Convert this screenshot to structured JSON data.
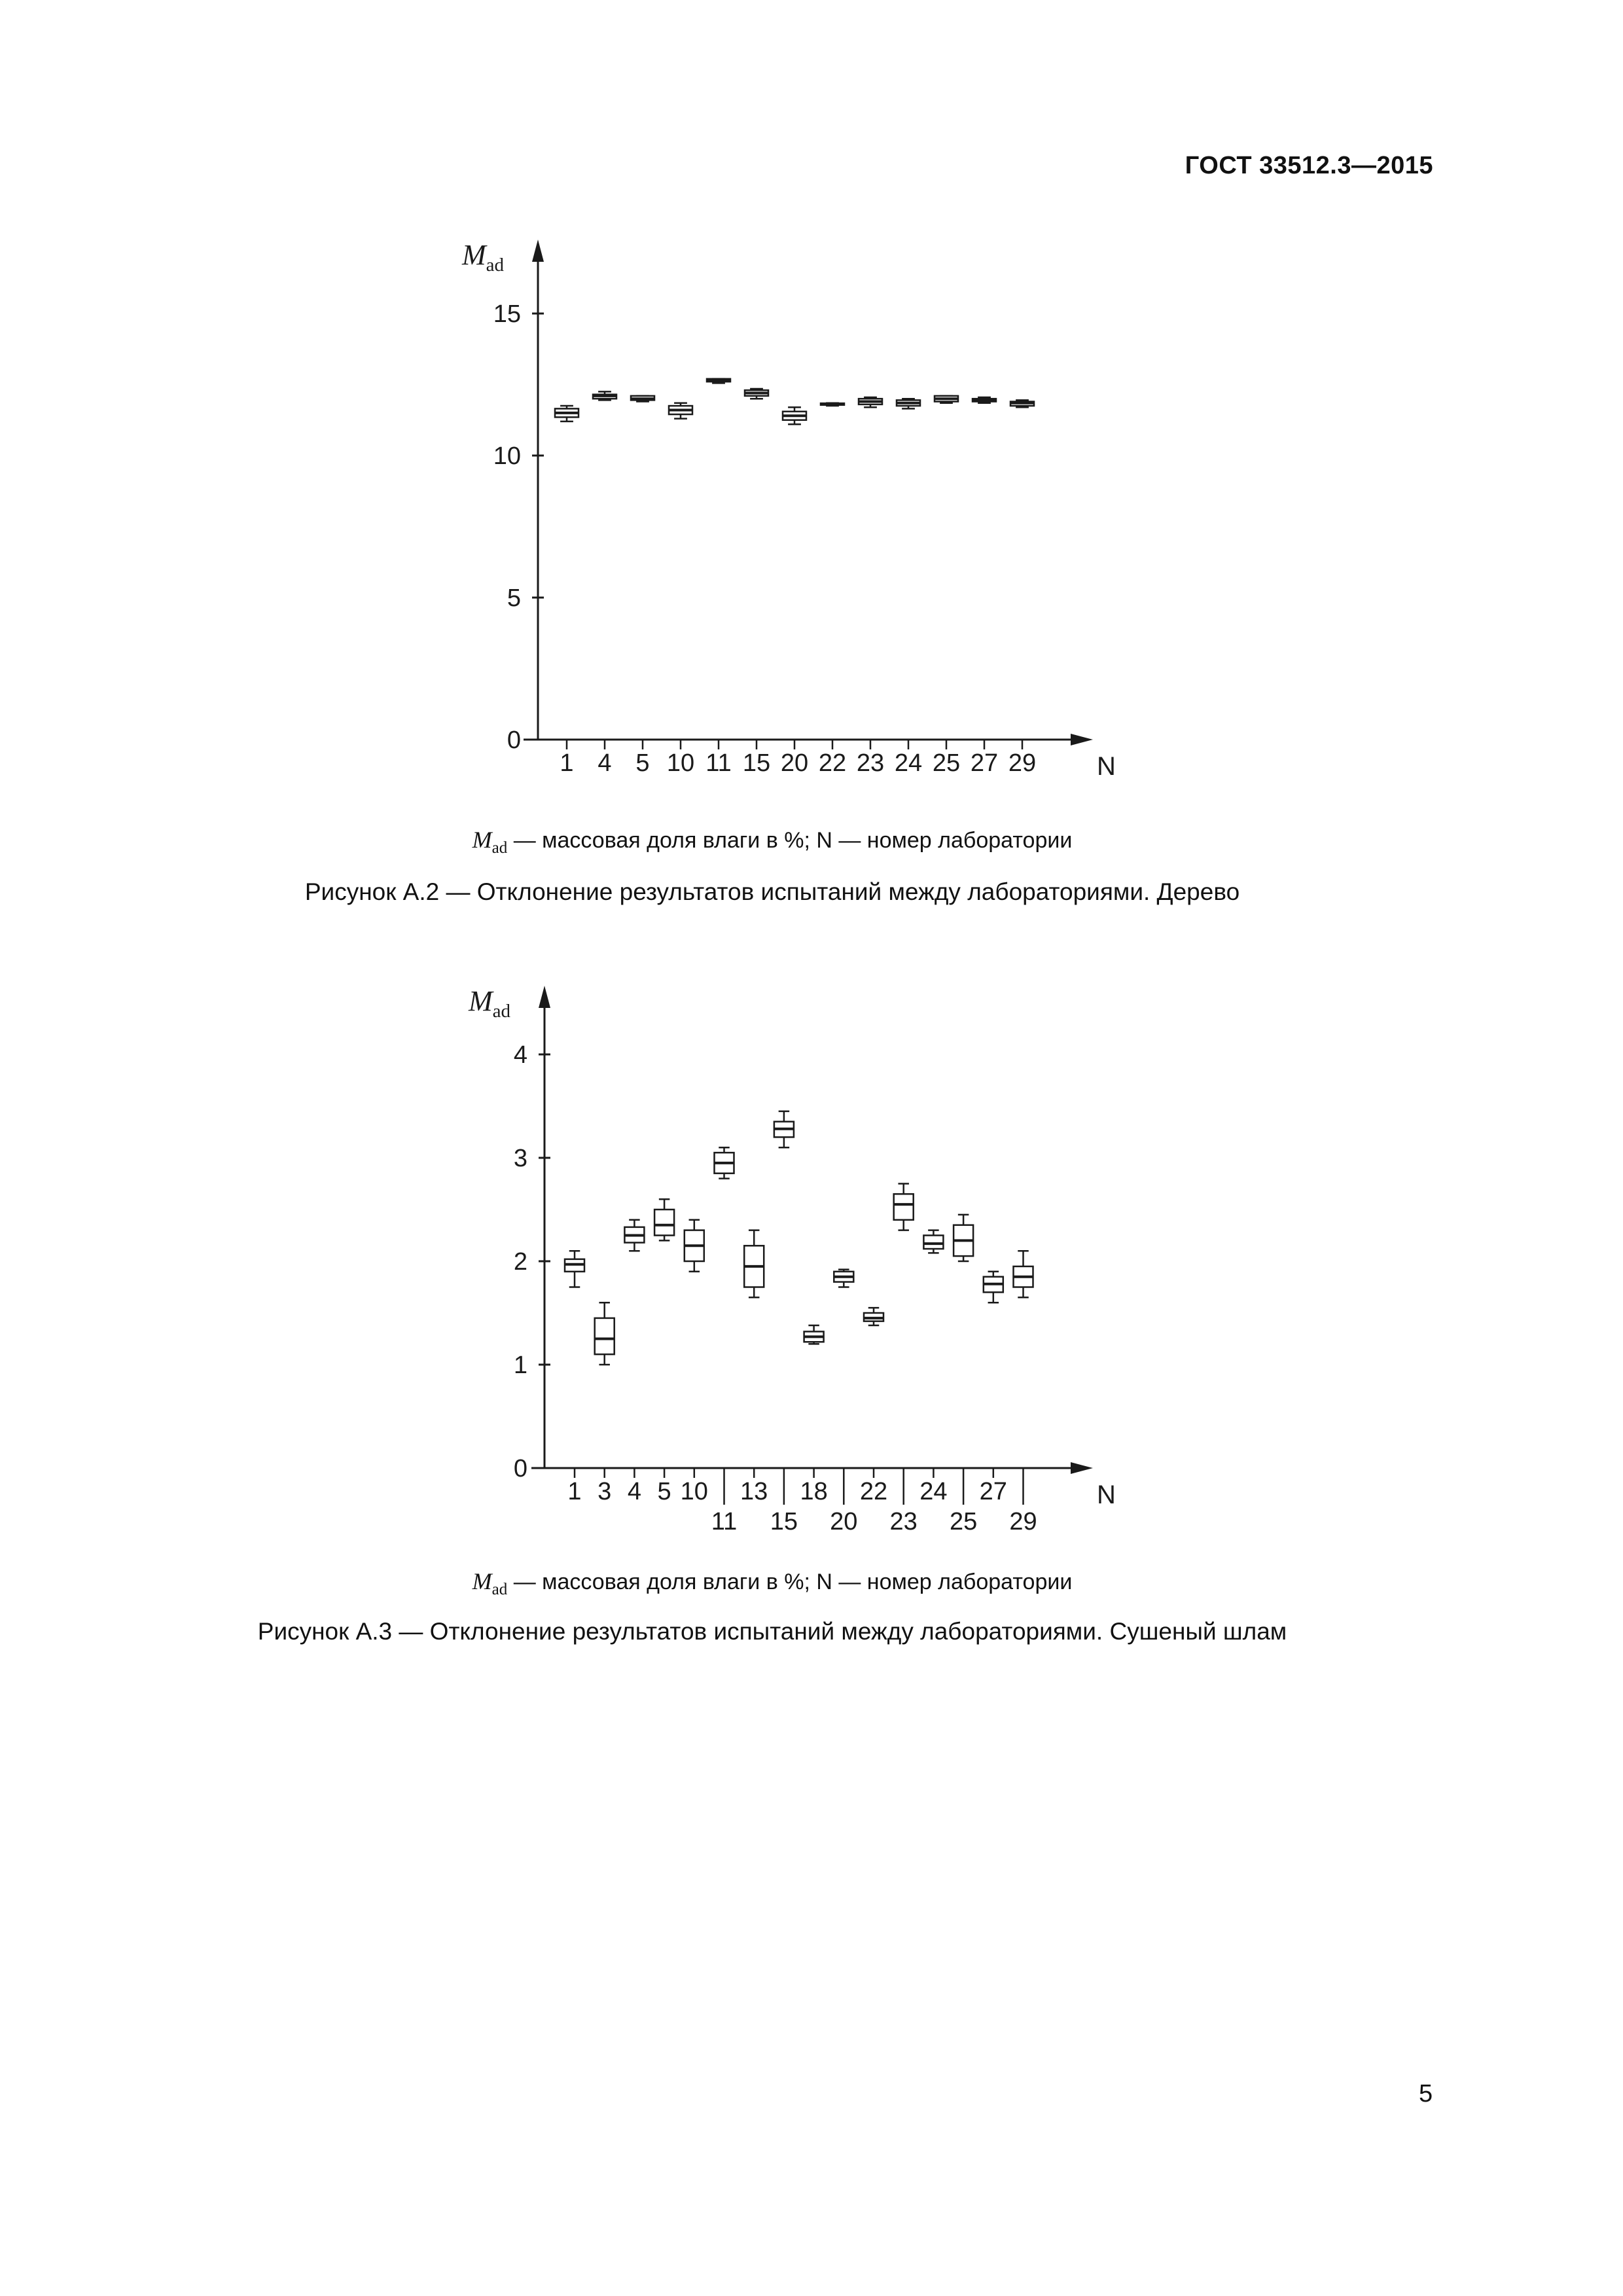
{
  "page": {
    "header": "ГОСТ 33512.3—2015",
    "page_number": "5"
  },
  "figures": {
    "a2": {
      "note_symbol": "M",
      "note_sub": "ad",
      "note_rest": " — массовая доля влаги в %; N — номер лаборатории",
      "caption": "Рисунок А.2 — Отклонение результатов испытаний между лабораториями. Дерево"
    },
    "a3": {
      "note_symbol": "M",
      "note_sub": "ad",
      "note_rest": " — массовая доля влаги в %; N — номер лаборатории",
      "caption": "Рисунок А.3 — Отклонение результатов испытаний между лабораториями. Сушеный шлам"
    }
  },
  "chart_data": [
    {
      "type": "boxplot",
      "figure": "А.2",
      "title": "Отклонение результатов испытаний между лабораториями. Дерево",
      "ylabel_main": "M",
      "ylabel_sub": "ad",
      "xlabel": "N",
      "ylim": [
        0,
        16
      ],
      "yticks": [
        0,
        5,
        10,
        15
      ],
      "grid": false,
      "legend": "none",
      "categories": [
        "1",
        "4",
        "5",
        "10",
        "11",
        "15",
        "20",
        "22",
        "23",
        "24",
        "25",
        "27",
        "29"
      ],
      "boxes": [
        {
          "lab": "1",
          "lo": 11.2,
          "q1": 11.35,
          "med": 11.5,
          "q3": 11.65,
          "hi": 11.75,
          "label_row": 1
        },
        {
          "lab": "4",
          "lo": 11.95,
          "q1": 12.0,
          "med": 12.1,
          "q3": 12.15,
          "hi": 12.25,
          "label_row": 1
        },
        {
          "lab": "5",
          "lo": 11.9,
          "q1": 11.95,
          "med": 12.0,
          "q3": 12.1,
          "hi": 12.1,
          "label_row": 1
        },
        {
          "lab": "10",
          "lo": 11.3,
          "q1": 11.45,
          "med": 11.6,
          "q3": 11.75,
          "hi": 11.85,
          "label_row": 1
        },
        {
          "lab": "11",
          "lo": 12.55,
          "q1": 12.6,
          "med": 12.65,
          "q3": 12.7,
          "hi": 12.7,
          "label_row": 1
        },
        {
          "lab": "15",
          "lo": 12.0,
          "q1": 12.1,
          "med": 12.2,
          "q3": 12.3,
          "hi": 12.35,
          "label_row": 1
        },
        {
          "lab": "20",
          "lo": 11.1,
          "q1": 11.25,
          "med": 11.4,
          "q3": 11.55,
          "hi": 11.7,
          "label_row": 1
        },
        {
          "lab": "22",
          "lo": 11.75,
          "q1": 11.78,
          "med": 11.8,
          "q3": 11.84,
          "hi": 11.85,
          "label_row": 1
        },
        {
          "lab": "23",
          "lo": 11.7,
          "q1": 11.8,
          "med": 11.9,
          "q3": 12.0,
          "hi": 12.05,
          "label_row": 1
        },
        {
          "lab": "24",
          "lo": 11.65,
          "q1": 11.75,
          "med": 11.85,
          "q3": 11.95,
          "hi": 12.0,
          "label_row": 1
        },
        {
          "lab": "25",
          "lo": 11.85,
          "q1": 11.9,
          "med": 12.0,
          "q3": 12.1,
          "hi": 12.1,
          "label_row": 1
        },
        {
          "lab": "27",
          "lo": 11.85,
          "q1": 11.9,
          "med": 11.95,
          "q3": 12.0,
          "hi": 12.05,
          "label_row": 1
        },
        {
          "lab": "29",
          "lo": 11.7,
          "q1": 11.75,
          "med": 11.85,
          "q3": 11.9,
          "hi": 11.95,
          "label_row": 1
        }
      ]
    },
    {
      "type": "boxplot",
      "figure": "А.3",
      "title": "Отклонение результатов испытаний между лабораториями. Сушеный шлам",
      "ylabel_main": "M",
      "ylabel_sub": "ad",
      "xlabel": "N",
      "ylim": [
        0,
        4.4
      ],
      "yticks": [
        0,
        1,
        2,
        3,
        4
      ],
      "grid": false,
      "legend": "none",
      "categories": [
        "1",
        "3",
        "4",
        "5",
        "10",
        "11",
        "13",
        "15",
        "18",
        "20",
        "22",
        "23",
        "24",
        "25",
        "27",
        "29"
      ],
      "boxes": [
        {
          "lab": "1",
          "lo": 1.75,
          "q1": 1.9,
          "med": 1.97,
          "q3": 2.02,
          "hi": 2.1,
          "label_row": 1
        },
        {
          "lab": "3",
          "lo": 1.0,
          "q1": 1.1,
          "med": 1.25,
          "q3": 1.45,
          "hi": 1.6,
          "label_row": 1
        },
        {
          "lab": "4",
          "lo": 2.1,
          "q1": 2.18,
          "med": 2.25,
          "q3": 2.33,
          "hi": 2.4,
          "label_row": 1
        },
        {
          "lab": "5",
          "lo": 2.2,
          "q1": 2.25,
          "med": 2.35,
          "q3": 2.5,
          "hi": 2.6,
          "label_row": 1
        },
        {
          "lab": "10",
          "lo": 1.9,
          "q1": 2.0,
          "med": 2.15,
          "q3": 2.3,
          "hi": 2.4,
          "label_row": 1
        },
        {
          "lab": "11",
          "lo": 2.8,
          "q1": 2.85,
          "med": 2.95,
          "q3": 3.05,
          "hi": 3.1,
          "label_row": 2
        },
        {
          "lab": "13",
          "lo": 1.65,
          "q1": 1.75,
          "med": 1.95,
          "q3": 2.15,
          "hi": 2.3,
          "label_row": 1
        },
        {
          "lab": "15",
          "lo": 3.1,
          "q1": 3.2,
          "med": 3.28,
          "q3": 3.35,
          "hi": 3.45,
          "label_row": 2
        },
        {
          "lab": "18",
          "lo": 1.2,
          "q1": 1.22,
          "med": 1.27,
          "q3": 1.32,
          "hi": 1.38,
          "label_row": 1
        },
        {
          "lab": "20",
          "lo": 1.75,
          "q1": 1.8,
          "med": 1.85,
          "q3": 1.9,
          "hi": 1.92,
          "label_row": 2
        },
        {
          "lab": "22",
          "lo": 1.38,
          "q1": 1.42,
          "med": 1.45,
          "q3": 1.5,
          "hi": 1.55,
          "label_row": 1
        },
        {
          "lab": "23",
          "lo": 2.3,
          "q1": 2.4,
          "med": 2.55,
          "q3": 2.65,
          "hi": 2.75,
          "label_row": 2
        },
        {
          "lab": "24",
          "lo": 2.08,
          "q1": 2.12,
          "med": 2.17,
          "q3": 2.25,
          "hi": 2.3,
          "label_row": 1
        },
        {
          "lab": "25",
          "lo": 2.0,
          "q1": 2.05,
          "med": 2.2,
          "q3": 2.35,
          "hi": 2.45,
          "label_row": 2
        },
        {
          "lab": "27",
          "lo": 1.6,
          "q1": 1.7,
          "med": 1.78,
          "q3": 1.85,
          "hi": 1.9,
          "label_row": 1
        },
        {
          "lab": "29",
          "lo": 1.65,
          "q1": 1.75,
          "med": 1.85,
          "q3": 1.95,
          "hi": 2.1,
          "label_row": 2
        }
      ]
    }
  ]
}
